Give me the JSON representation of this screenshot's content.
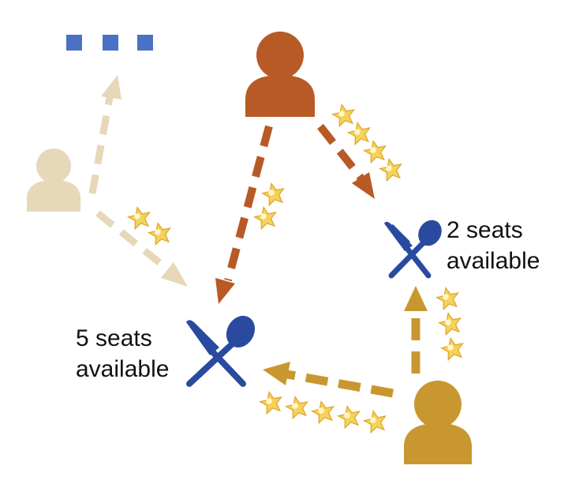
{
  "colors": {
    "background": "#ffffff",
    "beige": "#e6d8b8",
    "rust": "#b85a26",
    "gold": "#c99730",
    "utensil_blue": "#2a4aa0",
    "dots_blue": "#4a72c4",
    "star": "#f5d25a",
    "text": "#111111"
  },
  "persons": [
    {
      "id": "beige",
      "color": "#e6d8b8"
    },
    {
      "id": "rust",
      "color": "#b85a26"
    },
    {
      "id": "gold",
      "color": "#c99730"
    }
  ],
  "restaurants": [
    {
      "id": "left",
      "seats_label_line1": "5 seats",
      "seats_label_line2": "available",
      "seats": 5
    },
    {
      "id": "right",
      "seats_label_line1": "2 seats",
      "seats_label_line2": "available",
      "seats": 2
    }
  ],
  "edges": [
    {
      "from": "beige",
      "to": "more",
      "stars": 0
    },
    {
      "from": "beige",
      "to": "left",
      "stars": 2
    },
    {
      "from": "rust",
      "to": "left",
      "stars": 2
    },
    {
      "from": "rust",
      "to": "right",
      "stars": 4
    },
    {
      "from": "gold",
      "to": "right",
      "stars": 3
    },
    {
      "from": "gold",
      "to": "left",
      "stars": 5
    }
  ],
  "icons": {
    "person": "person-icon",
    "restaurant": "fork-spoon-icon",
    "star": "star-icon",
    "more": "ellipsis-icon"
  }
}
